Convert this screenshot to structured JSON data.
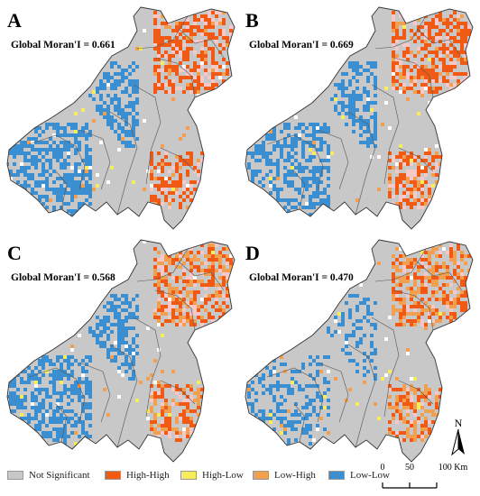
{
  "panels": [
    {
      "id": "A",
      "label": "A",
      "moran": "Global Moran'I = 0.661",
      "seed": 11,
      "hh": 1.0,
      "ll": 1.0
    },
    {
      "id": "B",
      "label": "B",
      "moran": "Global Moran'I = 0.669",
      "seed": 23,
      "hh": 0.95,
      "ll": 0.9
    },
    {
      "id": "C",
      "label": "C",
      "moran": "Global Moran'I = 0.568",
      "seed": 37,
      "hh": 0.7,
      "ll": 1.05
    },
    {
      "id": "D",
      "label": "D",
      "moran": "Global Moran'I = 0.470",
      "seed": 51,
      "hh": 0.6,
      "ll": 0.55
    }
  ],
  "legend": [
    {
      "label": "Not Significant",
      "color": "#c8c8c8"
    },
    {
      "label": "High-High",
      "color": "#f05a14"
    },
    {
      "label": "High-Low",
      "color": "#f5ee5a"
    },
    {
      "label": "Low-High",
      "color": "#f0a050"
    },
    {
      "label": "Low-Low",
      "color": "#3b8fd0"
    }
  ],
  "north_label": "N",
  "scale": {
    "ticks": [
      "0",
      "50",
      "100 Km"
    ]
  },
  "colors": {
    "not_significant": "#c8c8c8",
    "high_high": "#f05a14",
    "high_low": "#f5ee5a",
    "low_high": "#f0a050",
    "low_low": "#3b8fd0",
    "pink": "#f6c8c8",
    "boundary": "#333333"
  }
}
